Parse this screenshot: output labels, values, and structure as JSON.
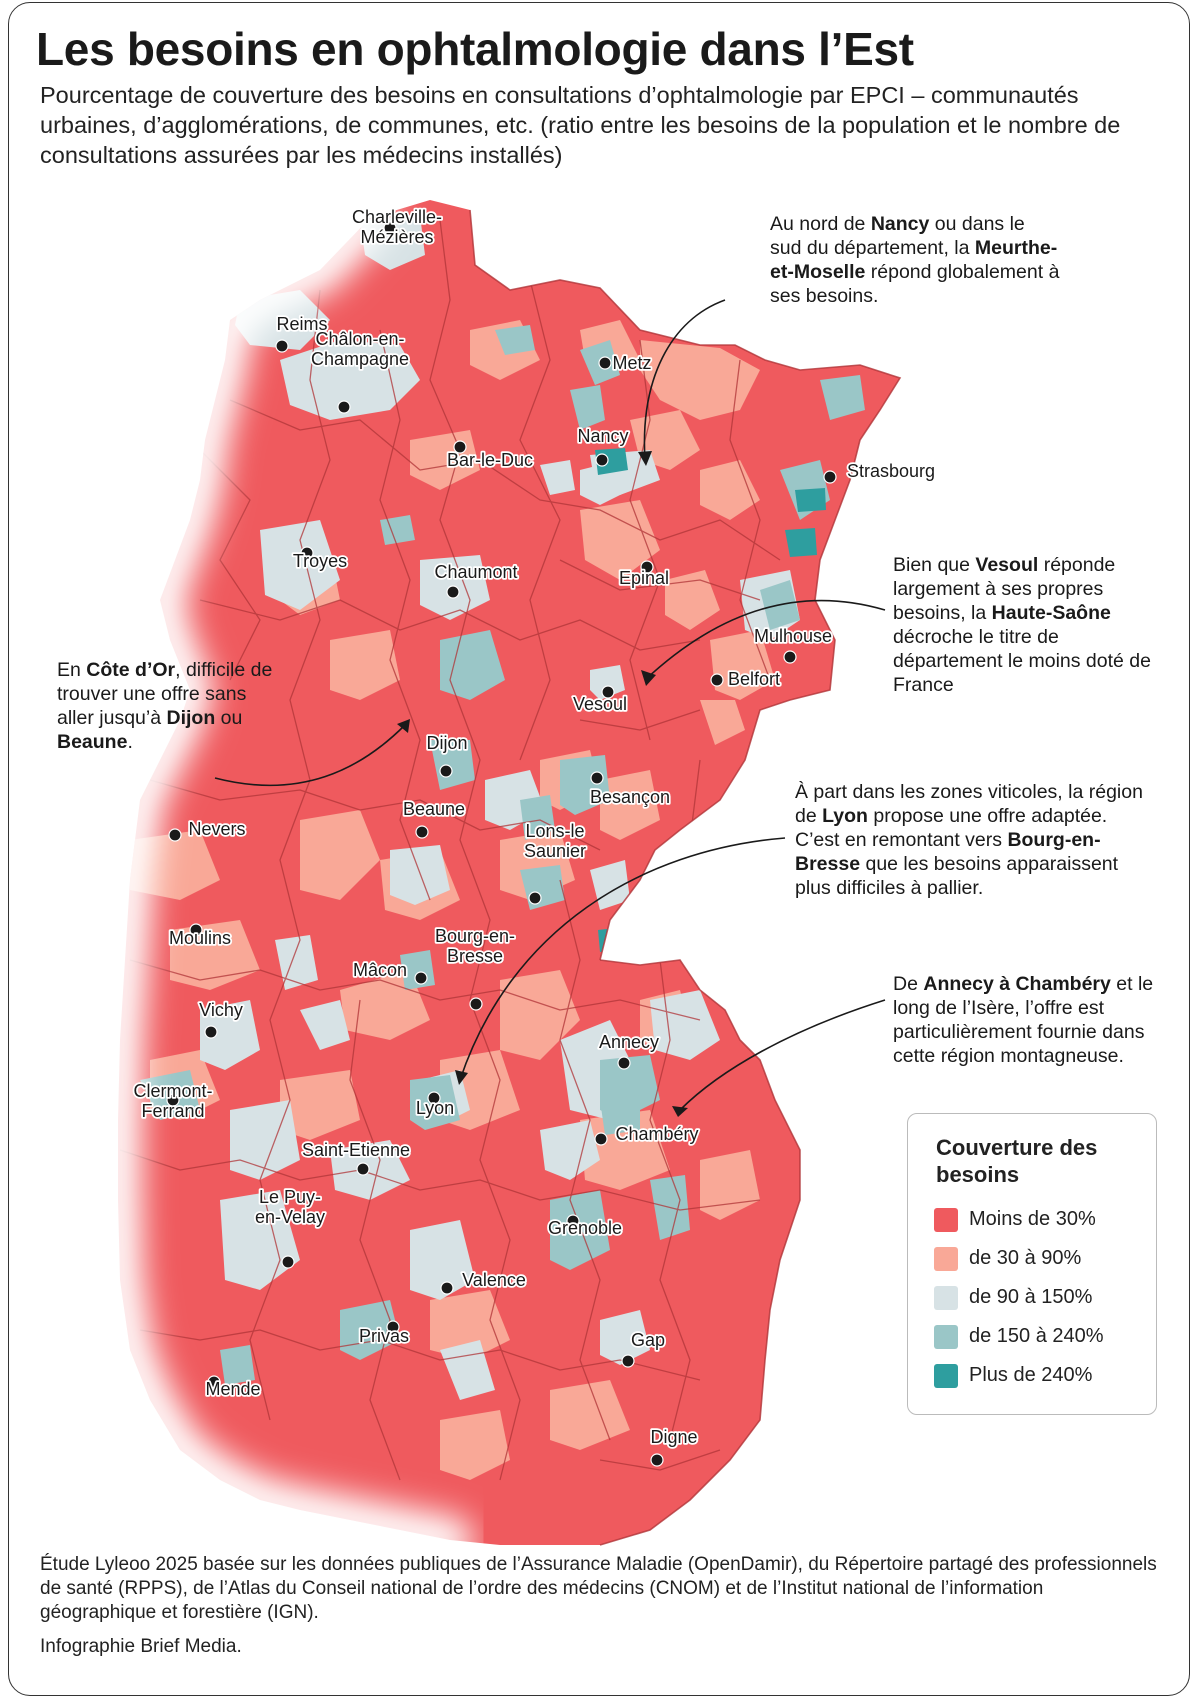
{
  "title": "Les besoins en ophtalmologie dans l’Est",
  "subtitle": "Pourcentage de couverture des besoins en consultations d’ophtalmologie par EPCI – communautés urbaines, d’agglomérations, de communes, etc. (ratio entre les besoins de la population et le nombre de consultations assurées par les médecins installés)",
  "colors": {
    "lt30": "#ef5a5e",
    "30to90": "#f9a897",
    "90to150": "#d7e2e5",
    "150to240": "#9ac6c7",
    "gt240": "#2e9e9f",
    "border": "#b03538"
  },
  "legend": {
    "title": "Couverture des besoins",
    "items": [
      {
        "label": "Moins de 30%",
        "color": "#ef5a5e"
      },
      {
        "label": "de 30 à 90%",
        "color": "#f9a897"
      },
      {
        "label": "de 90 à 150%",
        "color": "#d7e2e5"
      },
      {
        "label": "de 150 à 240%",
        "color": "#9ac6c7"
      },
      {
        "label": "Plus de 240%",
        "color": "#2e9e9f"
      }
    ]
  },
  "cities": [
    "Charleville-\nMézières",
    "Reims",
    "Châlon-en-\nChampagne",
    "Metz",
    "Nancy",
    "Bar-le-Duc",
    "Strasbourg",
    "Troyes",
    "Chaumont",
    "Epinal",
    "Mulhouse",
    "Belfort",
    "Vesoul",
    "Dijon",
    "Beaune",
    "Besançon",
    "Nevers",
    "Lons-le\nSaunier",
    "Moulins",
    "Mâcon",
    "Bourg-en-\nBresse",
    "Vichy",
    "Annecy",
    "Clermont-\nFerrand",
    "Lyon",
    "Chambéry",
    "Saint-Etienne",
    "Le Puy-\nen-Velay",
    "Grenoble",
    "Valence",
    "Privas",
    "Gap",
    "Mende",
    "Digne"
  ],
  "annotations": {
    "nancy": [
      "Au nord de ",
      "Nancy",
      " ou dans le sud du département, la ",
      "Meurthe- et-Moselle",
      " répond globalement à ses besoins."
    ],
    "vesoul": [
      "Bien que ",
      "Vesoul",
      " réponde largement à ses propres besoins, la ",
      "Haute-Saône",
      " décroche le titre de département le moins doté de France"
    ],
    "cotedor": [
      "En ",
      "Côte d’Or",
      ", difficile de trouver une offre sans aller jusqu’à ",
      "Dijon",
      " ou ",
      "Beaune",
      "."
    ],
    "lyon": [
      "À part dans les zones viticoles, la région de ",
      "Lyon",
      " propose une offre adaptée. C’est en remontant vers ",
      "Bourg-en-Bresse",
      " que les besoins apparaissent plus difficiles à pallier."
    ],
    "annecy": [
      "De ",
      "Annecy à Chambéry",
      " et le long de l’Isère, l’offre est particulièrement fournie dans cette région montagneuse."
    ]
  },
  "source": "Étude Lyleoo 2025 basée sur les données publiques de l’Assurance Maladie (OpenDamir), du Répertoire partagé des professionnels de santé (RPPS), de l’Atlas du Conseil national de l’ordre des médecins (CNOM) et de l’Institut national de l’information géographique et forestière (IGN).",
  "credit": "Infographie Brief Media."
}
